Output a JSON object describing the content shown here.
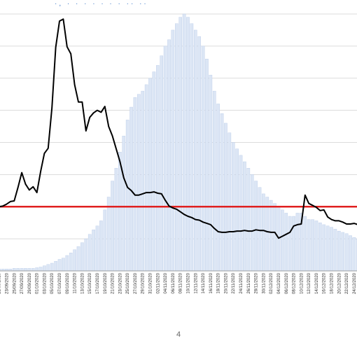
{
  "page": {
    "number": "4",
    "title_fragment": "·, · · · · · · ·  ·· ··"
  },
  "chart_data": {
    "type": "bar",
    "ylim": [
      0,
      400
    ],
    "grid": true,
    "colors": {
      "bars": "#dce6f5",
      "bar_edge": "#b9cbe8",
      "line": "#000000",
      "threshold": "#e02020",
      "grid": "#d0d0d0"
    },
    "threshold": 100,
    "x": [
      "21/09/2020",
      "22/09/2020",
      "23/09/2020",
      "24/09/2020",
      "25/09/2020",
      "26/09/2020",
      "27/09/2020",
      "28/09/2020",
      "29/09/2020",
      "30/09/2020",
      "01/10/2020",
      "02/10/2020",
      "03/10/2020",
      "04/10/2020",
      "05/10/2020",
      "06/10/2020",
      "07/10/2020",
      "08/10/2020",
      "09/10/2020",
      "10/10/2020",
      "11/10/2020",
      "12/10/2020",
      "13/10/2020",
      "14/10/2020",
      "15/10/2020",
      "16/10/2020",
      "17/10/2020",
      "18/10/2020",
      "19/10/2020",
      "20/10/2020",
      "21/10/2020",
      "22/10/2020",
      "23/10/2020",
      "24/10/2020",
      "25/10/2020",
      "26/10/2020",
      "27/10/2020",
      "28/10/2020",
      "29/10/2020",
      "30/10/2020",
      "31/10/2020",
      "01/11/2020",
      "02/11/2020",
      "03/11/2020",
      "04/11/2020",
      "05/11/2020",
      "06/11/2020",
      "07/11/2020",
      "08/11/2020",
      "09/11/2020",
      "10/11/2020",
      "11/11/2020",
      "12/11/2020",
      "13/11/2020",
      "14/11/2020",
      "15/11/2020",
      "16/11/2020",
      "17/11/2020",
      "18/11/2020",
      "19/11/2020",
      "20/11/2020",
      "21/11/2020",
      "22/11/2020",
      "23/11/2020",
      "24/11/2020",
      "25/11/2020",
      "26/11/2020",
      "27/11/2020",
      "28/11/2020",
      "29/11/2020",
      "30/11/2020",
      "01/12/2020",
      "02/12/2020",
      "03/12/2020",
      "04/12/2020",
      "05/12/2020",
      "06/12/2020",
      "07/12/2020",
      "08/12/2020",
      "09/12/2020",
      "10/12/2020",
      "11/12/2020",
      "12/12/2020",
      "13/12/2020",
      "14/12/2020",
      "15/12/2020",
      "16/12/2020",
      "17/12/2020",
      "18/12/2020",
      "19/12/2020",
      "20/12/2020",
      "21/12/2020",
      "22/12/2020",
      "23/12/2020",
      "24/12/2020",
      "25/12/2020"
    ],
    "tick_labels": [
      "21/09/2020",
      "23/09/2020",
      "25/09/2020",
      "27/09/2020",
      "29/09/2020",
      "01/10/2020",
      "03/10/2020",
      "05/10/2020",
      "07/10/2020",
      "09/10/2020",
      "11/10/2020",
      "13/10/2020",
      "15/10/2020",
      "17/10/2020",
      "19/10/2020",
      "21/10/2020",
      "23/10/2020",
      "25/10/2020",
      "27/10/2020",
      "29/10/2020",
      "31/10/2020",
      "02/11/2020",
      "04/11/2020",
      "06/11/2020",
      "08/11/2020",
      "10/11/2020",
      "12/11/2020",
      "14/11/2020",
      "16/11/2020",
      "18/11/2020",
      "20/11/2020",
      "22/11/2020",
      "24/11/2020",
      "26/11/2020",
      "28/11/2020",
      "30/11/2020",
      "02/12/2020",
      "04/12/2020",
      "06/12/2020",
      "08/12/2020",
      "10/12/2020",
      "12/12/2020",
      "14/12/2020",
      "16/12/2020",
      "18/12/2020",
      "20/12/2020",
      "22/12/2020",
      "24/12/2020"
    ],
    "series": [
      {
        "type": "bar",
        "values": [
          3,
          3,
          3,
          3,
          4,
          4,
          4,
          4,
          4,
          4,
          5,
          6,
          8,
          10,
          12,
          15,
          18,
          20,
          24,
          28,
          33,
          38,
          44,
          50,
          57,
          64,
          70,
          78,
          95,
          115,
          140,
          160,
          185,
          210,
          235,
          255,
          270,
          275,
          280,
          290,
          300,
          310,
          320,
          335,
          350,
          360,
          375,
          385,
          395,
          400,
          395,
          385,
          375,
          365,
          350,
          330,
          305,
          280,
          260,
          245,
          230,
          215,
          200,
          190,
          180,
          170,
          160,
          150,
          140,
          130,
          120,
          115,
          110,
          105,
          100,
          95,
          90,
          85,
          85,
          90,
          90,
          85,
          80,
          80,
          78,
          75,
          72,
          70,
          68,
          65,
          62,
          60,
          58,
          55,
          52,
          50
        ]
      },
      {
        "type": "line",
        "values": [
          100,
          101,
          104,
          108,
          109,
          130,
          153,
          135,
          126,
          131,
          122,
          155,
          183,
          191,
          254,
          348,
          389,
          392,
          349,
          338,
          290,
          263,
          263,
          218,
          239,
          246,
          250,
          247,
          256,
          225,
          210,
          190,
          170,
          145,
          130,
          125,
          118,
          118,
          120,
          122,
          122,
          123,
          121,
          120,
          110,
          101,
          98,
          96,
          92,
          88,
          85,
          83,
          80,
          79,
          76,
          74,
          72,
          66,
          61,
          60,
          60,
          61,
          61,
          62,
          62,
          63,
          62,
          62,
          64,
          63,
          63,
          61,
          60,
          60,
          51,
          54,
          57,
          60,
          70,
          72,
          73,
          118,
          105,
          102,
          99,
          94,
          95,
          84,
          80,
          78,
          78,
          76,
          73,
          73,
          74,
          72
        ]
      }
    ]
  }
}
